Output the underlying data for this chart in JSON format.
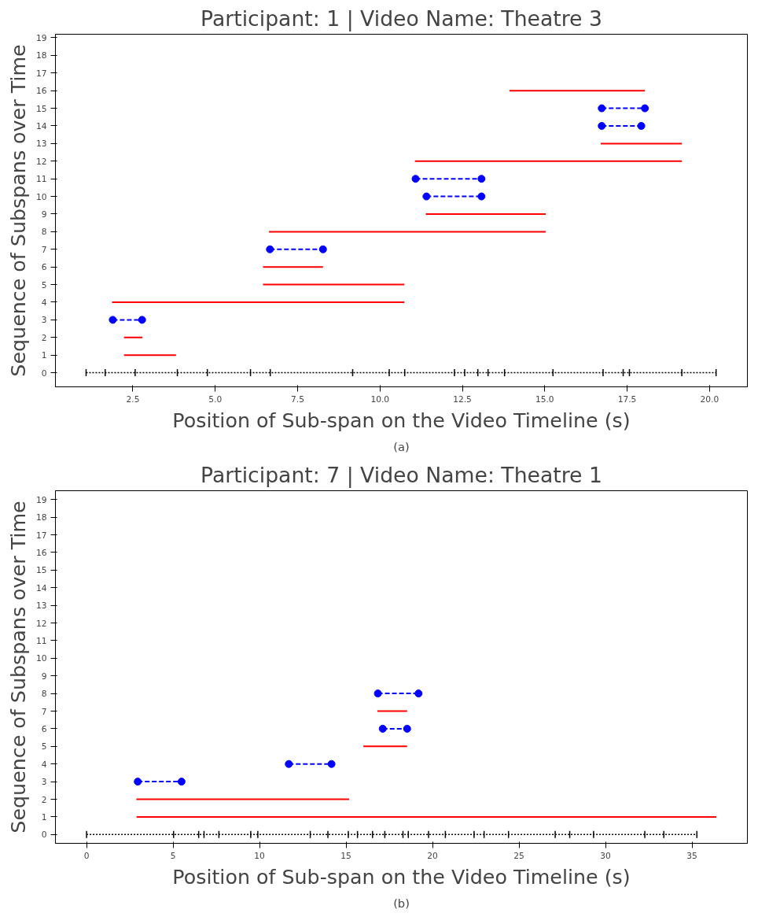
{
  "chart_data": [
    {
      "type": "line",
      "title": "Participant: 1 | Video Name: Theatre 3",
      "xlabel": "Position of Sub-span on the Video Timeline (s)",
      "ylabel": "Sequence of Subspans over Time",
      "annotations": [
        "(a)"
      ],
      "xlim": [
        0.15,
        21.15
      ],
      "ylim": [
        -0.8,
        19.2
      ],
      "xticks": [
        {
          "value": 2.5,
          "label": "2.5"
        },
        {
          "value": 5,
          "label": "5.0"
        },
        {
          "value": 7.5,
          "label": "7.5"
        },
        {
          "value": 10,
          "label": "10.0"
        },
        {
          "value": 12.5,
          "label": "12.5"
        },
        {
          "value": 15,
          "label": "15.0"
        },
        {
          "value": 17.5,
          "label": "17.5"
        },
        {
          "value": 20,
          "label": "20.0"
        }
      ],
      "yticks": [
        0,
        1,
        2,
        3,
        4,
        5,
        6,
        7,
        8,
        9,
        10,
        11,
        12,
        13,
        14,
        15,
        16,
        17,
        18,
        19
      ],
      "grid": false,
      "series": [
        {
          "color": "#000000",
          "line_style": "dotted",
          "errors": [
            0.2,
            0.2,
            0.2,
            0.2,
            0.2,
            0.2,
            0.2,
            0.2,
            0.2,
            0.2,
            0.2,
            0.2,
            0.2,
            0.2,
            0.2,
            0.2,
            0.2,
            0.2,
            0.2,
            0.2,
            0.2
          ],
          "x": [
            1.08,
            1.66,
            2.57,
            3.85,
            4.76,
            6.07,
            6.67,
            9.17,
            10.28,
            10.75,
            12.26,
            12.57,
            12.97,
            13.28,
            13.78,
            15.25,
            16.77,
            17.38,
            17.57,
            19.16,
            20.2
          ],
          "values": [
            0,
            0,
            0,
            0,
            0,
            0,
            0,
            0,
            0,
            0,
            0,
            0,
            0,
            0,
            0,
            0,
            0,
            0,
            0,
            0,
            0
          ]
        },
        {
          "color": "#ff0000",
          "line_style": "solid",
          "marker": "none",
          "x": [
            2.23,
            3.81
          ],
          "values": [
            1,
            1
          ]
        },
        {
          "color": "#ff0000",
          "line_style": "solid",
          "marker": "none",
          "x": [
            2.23,
            2.79
          ],
          "values": [
            2,
            2
          ]
        },
        {
          "color": "#0000ff",
          "line_style": "dashed",
          "marker": "circle",
          "x": [
            1.89,
            2.78
          ],
          "values": [
            3,
            3
          ]
        },
        {
          "color": "#ff0000",
          "line_style": "solid",
          "marker": "none",
          "x": [
            1.87,
            10.74
          ],
          "values": [
            4,
            4
          ]
        },
        {
          "color": "#ff0000",
          "line_style": "solid",
          "marker": "none",
          "x": [
            6.45,
            10.74
          ],
          "values": [
            5,
            5
          ]
        },
        {
          "color": "#ff0000",
          "line_style": "solid",
          "marker": "none",
          "x": [
            6.45,
            8.27
          ],
          "values": [
            6,
            6
          ]
        },
        {
          "color": "#0000ff",
          "line_style": "dashed",
          "marker": "circle",
          "x": [
            6.66,
            8.27
          ],
          "values": [
            7,
            7
          ]
        },
        {
          "color": "#ff0000",
          "line_style": "solid",
          "marker": "none",
          "x": [
            6.63,
            15.03
          ],
          "values": [
            8,
            8
          ]
        },
        {
          "color": "#ff0000",
          "line_style": "solid",
          "marker": "none",
          "x": [
            11.39,
            15.03
          ],
          "values": [
            9,
            9
          ]
        },
        {
          "color": "#0000ff",
          "line_style": "dashed",
          "marker": "circle",
          "x": [
            11.41,
            13.08
          ],
          "values": [
            10,
            10
          ]
        },
        {
          "color": "#0000ff",
          "line_style": "dashed",
          "marker": "circle",
          "x": [
            11.08,
            13.08
          ],
          "values": [
            11,
            11
          ]
        },
        {
          "color": "#ff0000",
          "line_style": "solid",
          "marker": "none",
          "x": [
            11.06,
            19.16
          ],
          "values": [
            12,
            12
          ]
        },
        {
          "color": "#ff0000",
          "line_style": "solid",
          "marker": "none",
          "x": [
            16.7,
            19.16
          ],
          "values": [
            13,
            13
          ]
        },
        {
          "color": "#0000ff",
          "line_style": "dashed",
          "marker": "circle",
          "x": [
            16.73,
            17.93
          ],
          "values": [
            14,
            14
          ]
        },
        {
          "color": "#0000ff",
          "line_style": "dashed",
          "marker": "circle",
          "x": [
            16.73,
            18.04
          ],
          "values": [
            15,
            15
          ]
        },
        {
          "color": "#ff0000",
          "line_style": "solid",
          "marker": "none",
          "x": [
            13.93,
            18.04
          ],
          "values": [
            16,
            16
          ]
        }
      ]
    },
    {
      "type": "line",
      "title": "Participant: 7 | Video Name: Theatre 1",
      "xlabel": "Position of Sub-span on the Video Timeline (s)",
      "ylabel": "Sequence of Subspans over Time",
      "annotations": [
        "(b)"
      ],
      "xlim": [
        -1.8,
        38.2
      ],
      "ylim": [
        -0.5,
        19.5
      ],
      "xticks": [
        0,
        5,
        10,
        15,
        20,
        25,
        30,
        35
      ],
      "yticks": [
        0,
        1,
        2,
        3,
        4,
        5,
        6,
        7,
        8,
        9,
        10,
        11,
        12,
        13,
        14,
        15,
        16,
        17,
        18,
        19
      ],
      "grid": false,
      "series": [
        {
          "color": "#000000",
          "line_style": "dotted",
          "errors": [
            0.2,
            0.2,
            0.2,
            0.2,
            0.2,
            0.2,
            0.2,
            0.2,
            0.2,
            0.2,
            0.2,
            0.2,
            0.2,
            0.2,
            0.2,
            0.2,
            0.2,
            0.2,
            0.2,
            0.2,
            0.2,
            0.2,
            0.2,
            0.2,
            0.2,
            0.2
          ],
          "x": [
            0,
            5.03,
            6.48,
            6.79,
            7.65,
            9.49,
            9.9,
            12.93,
            13.95,
            15.13,
            15.66,
            16.53,
            17.24,
            18.29,
            18.6,
            19.77,
            20.74,
            22.4,
            22.98,
            24.39,
            27.09,
            27.93,
            29.31,
            32.27,
            33.37,
            35.28
          ],
          "values": [
            0,
            0,
            0,
            0,
            0,
            0,
            0,
            0,
            0,
            0,
            0,
            0,
            0,
            0,
            0,
            0,
            0,
            0,
            0,
            0,
            0,
            0,
            0,
            0,
            0,
            0
          ]
        },
        {
          "color": "#ff0000",
          "line_style": "solid",
          "marker": "none",
          "x": [
            2.89,
            36.4
          ],
          "values": [
            1,
            1
          ]
        },
        {
          "color": "#ff0000",
          "line_style": "solid",
          "marker": "none",
          "x": [
            2.88,
            15.18
          ],
          "values": [
            2,
            2
          ]
        },
        {
          "color": "#0000ff",
          "line_style": "dashed",
          "marker": "circle",
          "x": [
            2.96,
            5.49
          ],
          "values": [
            3,
            3
          ]
        },
        {
          "color": "#0000ff",
          "line_style": "dashed",
          "marker": "circle",
          "x": [
            11.69,
            14.16
          ],
          "values": [
            4,
            4
          ]
        },
        {
          "color": "#ff0000",
          "line_style": "solid",
          "marker": "none",
          "x": [
            16.0,
            18.53
          ],
          "values": [
            5,
            5
          ]
        },
        {
          "color": "#0000ff",
          "line_style": "dashed",
          "marker": "circle",
          "x": [
            17.12,
            18.53
          ],
          "values": [
            6,
            6
          ]
        },
        {
          "color": "#ff0000",
          "line_style": "solid",
          "marker": "none",
          "x": [
            16.81,
            18.53
          ],
          "values": [
            7,
            7
          ]
        },
        {
          "color": "#0000ff",
          "line_style": "dashed",
          "marker": "circle",
          "x": [
            16.84,
            19.19
          ],
          "values": [
            8,
            8
          ]
        }
      ]
    }
  ]
}
